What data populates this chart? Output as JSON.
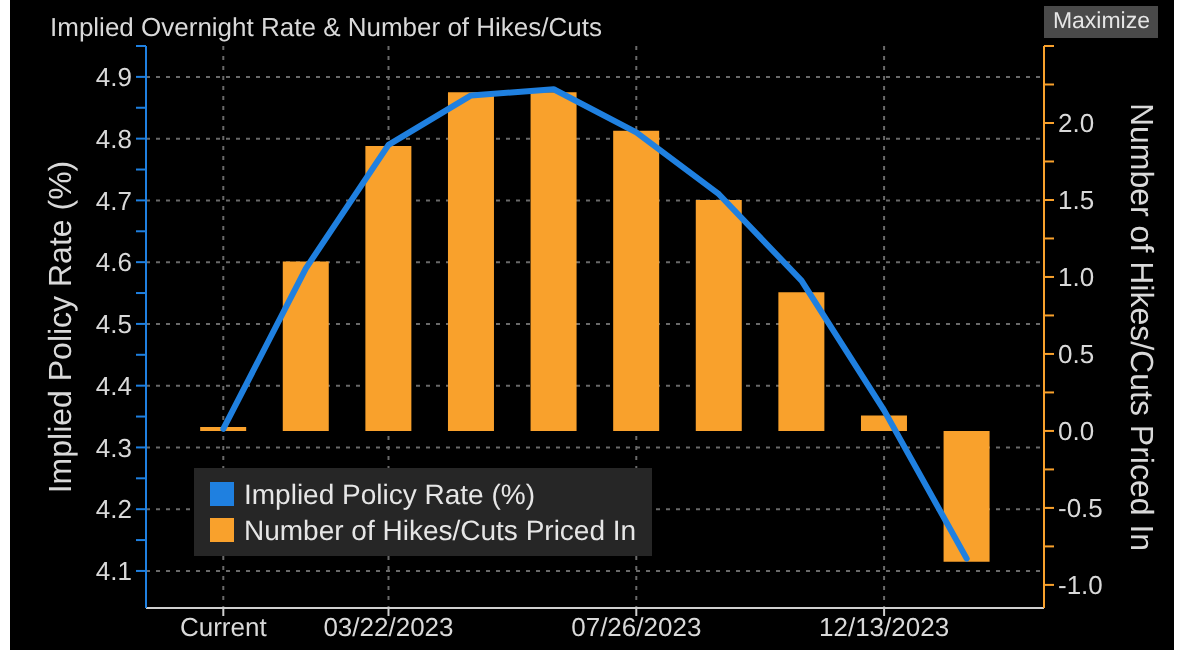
{
  "chart_data": {
    "type": "bar",
    "title": "Implied Overnight Rate & Number of Hikes/Cuts",
    "ylabel": "Implied Policy Rate (%)",
    "y2label": "Number of Hikes/Cuts Priced In",
    "annotations": [
      "Maximize"
    ],
    "categories": [
      "Current",
      null,
      "03/22/2023",
      null,
      null,
      "07/26/2023",
      null,
      null,
      "12/13/2023",
      null
    ],
    "series": [
      {
        "name": "Implied Policy Rate (%)",
        "type": "line",
        "color": "#1f80e0",
        "values": [
          4.33,
          4.59,
          4.79,
          4.87,
          4.88,
          4.81,
          4.71,
          4.57,
          4.36,
          4.12
        ]
      },
      {
        "name": "Number of Hikes/Cuts Priced In",
        "axis": "y2",
        "color": "#f9a12c",
        "values": [
          0,
          1.1,
          1.85,
          2.2,
          2.2,
          1.95,
          1.5,
          0.9,
          0.1,
          -0.85
        ]
      }
    ],
    "ylim": [
      4.04,
      4.95
    ],
    "yticks": [
      4.1,
      {
        "value": 4.15,
        "label": null
      },
      4.2,
      {
        "value": 4.25,
        "label": null
      },
      4.3,
      {
        "value": 4.35,
        "label": null
      },
      4.4,
      {
        "value": 4.45,
        "label": null
      },
      4.5,
      {
        "value": 4.55,
        "label": null
      },
      4.6,
      {
        "value": 4.65,
        "label": null
      },
      4.7,
      {
        "value": 4.75,
        "label": null
      },
      4.8,
      {
        "value": 4.85,
        "label": null
      },
      4.9,
      {
        "value": 4.95,
        "label": null
      }
    ],
    "y2lim": [
      -1.15,
      2.5
    ],
    "y2ticks": [
      {
        "value": -1,
        "label": "-1.0"
      },
      {
        "value": -0.75,
        "label": null
      },
      -0.5,
      {
        "value": -0.25,
        "label": null
      },
      {
        "value": 0,
        "label": "0.0"
      },
      {
        "value": 0.25,
        "label": null
      },
      0.5,
      {
        "value": 0.75,
        "label": null
      },
      {
        "value": 1,
        "label": "1.0"
      },
      {
        "value": 1.25,
        "label": null
      },
      1.5,
      {
        "value": 1.75,
        "label": null
      },
      {
        "value": 2,
        "label": "2.0"
      },
      {
        "value": 2.25,
        "label": null
      },
      {
        "value": 2.5,
        "label": null
      }
    ],
    "grid": true,
    "legend": "bottom left",
    "marker": "none",
    "line_style": "solid"
  }
}
